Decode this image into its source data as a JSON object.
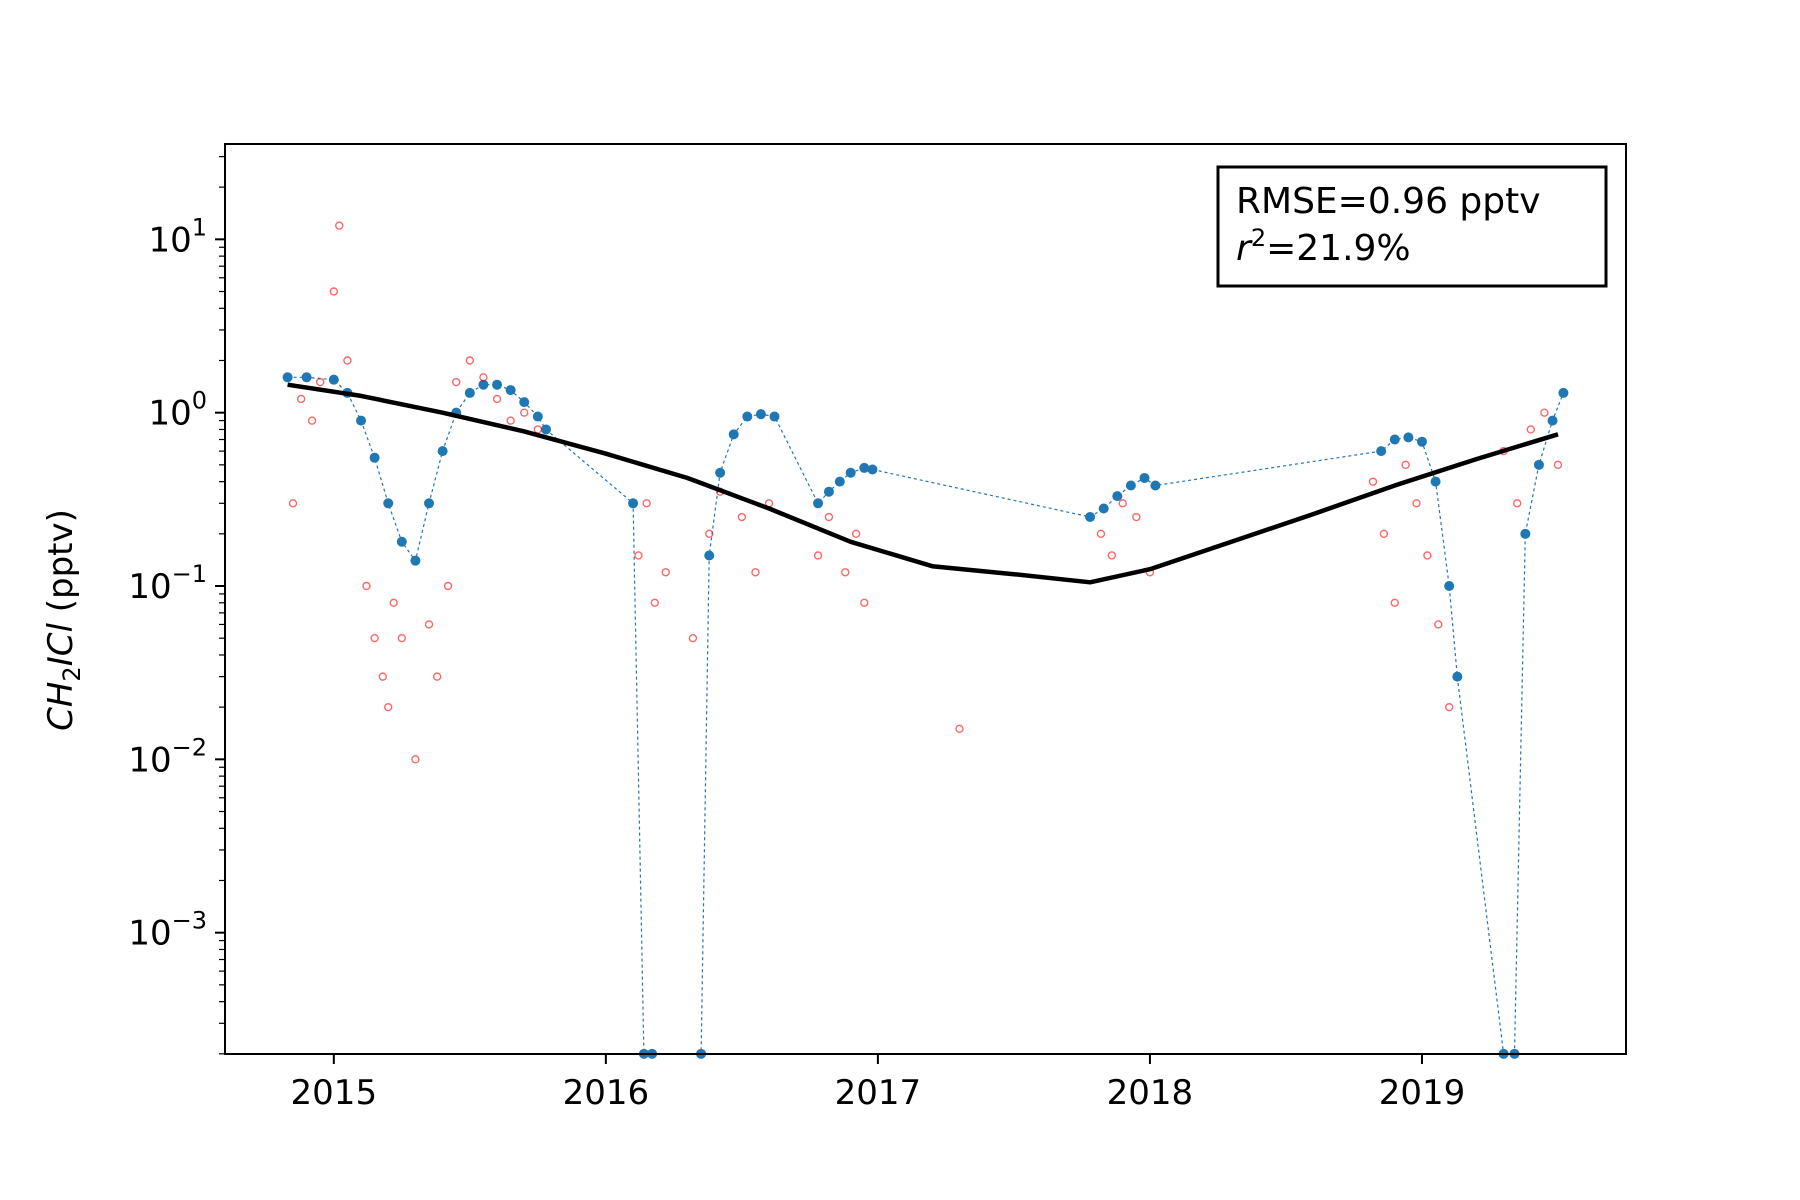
{
  "chart_data": {
    "type": "scatter",
    "title": "",
    "xlabel": "",
    "ylabel": {
      "species_main": "CH",
      "species_sub": "2",
      "species_rest": "ICl",
      "units": " (pptv)"
    },
    "yscale": "log",
    "xlim": [
      2014.6,
      2019.75
    ],
    "ylim_exponent": [
      -3.7,
      1.55
    ],
    "x_ticks": [
      {
        "value": 2015,
        "label": "2015"
      },
      {
        "value": 2016,
        "label": "2016"
      },
      {
        "value": 2017,
        "label": "2017"
      },
      {
        "value": 2018,
        "label": "2018"
      },
      {
        "value": 2019,
        "label": "2019"
      }
    ],
    "y_ticks": [
      {
        "exponent": 1,
        "base": "10",
        "sup": "1"
      },
      {
        "exponent": 0,
        "base": "10",
        "sup": "0"
      },
      {
        "exponent": -1,
        "base": "10",
        "sup": "−1"
      },
      {
        "exponent": -2,
        "base": "10",
        "sup": "−2"
      },
      {
        "exponent": -3,
        "base": "10",
        "sup": "−3"
      }
    ],
    "annotation": {
      "rmse_text": "RMSE=0.96 pptv",
      "r2_var": "r",
      "r2_sup": "2",
      "r2_rest": "=21.9%"
    },
    "colors": {
      "observed": "#ff0000",
      "model": "#1f77b4",
      "trend": "#000000"
    },
    "series": [
      {
        "name": "trend",
        "style": "line",
        "x": [
          2014.83,
          2015.1,
          2015.4,
          2015.7,
          2016.0,
          2016.3,
          2016.6,
          2016.9,
          2017.2,
          2017.5,
          2017.78,
          2018.0,
          2018.3,
          2018.6,
          2018.9,
          2019.2,
          2019.5
        ],
        "y": [
          1.45,
          1.25,
          1.0,
          0.78,
          0.58,
          0.42,
          0.28,
          0.18,
          0.13,
          0.117,
          0.105,
          0.125,
          0.18,
          0.26,
          0.38,
          0.54,
          0.75
        ]
      },
      {
        "name": "model",
        "style": "dots",
        "x": [
          2014.83,
          2014.9,
          2015.0,
          2015.05,
          2015.1,
          2015.15,
          2015.2,
          2015.25,
          2015.3,
          2015.35,
          2015.4,
          2015.45,
          2015.5,
          2015.55,
          2015.6,
          2015.65,
          2015.7,
          2015.75,
          2015.78,
          2016.1,
          2016.14,
          2016.17,
          2016.35,
          2016.38,
          2016.42,
          2016.47,
          2016.52,
          2016.57,
          2016.62,
          2016.78,
          2016.82,
          2016.86,
          2016.9,
          2016.95,
          2016.98,
          2017.78,
          2017.83,
          2017.88,
          2017.93,
          2017.98,
          2018.02,
          2018.85,
          2018.9,
          2018.95,
          2019.0,
          2019.05,
          2019.1,
          2019.13,
          2019.3,
          2019.34,
          2019.38,
          2019.43,
          2019.48,
          2019.52
        ],
        "y": [
          1.6,
          1.6,
          1.55,
          1.3,
          0.9,
          0.55,
          0.3,
          0.18,
          0.14,
          0.3,
          0.6,
          1.0,
          1.3,
          1.45,
          1.45,
          1.35,
          1.15,
          0.95,
          0.8,
          0.3,
          0.0002,
          0.0002,
          0.0002,
          0.15,
          0.45,
          0.75,
          0.95,
          0.98,
          0.95,
          0.3,
          0.35,
          0.4,
          0.45,
          0.48,
          0.47,
          0.25,
          0.28,
          0.33,
          0.38,
          0.42,
          0.38,
          0.6,
          0.7,
          0.72,
          0.68,
          0.4,
          0.1,
          0.03,
          0.0002,
          0.0002,
          0.2,
          0.5,
          0.9,
          1.3
        ]
      },
      {
        "name": "observed",
        "style": "scatter",
        "x": [
          2014.85,
          2014.88,
          2014.92,
          2014.95,
          2015.0,
          2015.02,
          2015.05,
          2015.12,
          2015.15,
          2015.18,
          2015.2,
          2015.22,
          2015.25,
          2015.3,
          2015.35,
          2015.38,
          2015.42,
          2015.45,
          2015.5,
          2015.55,
          2015.6,
          2015.65,
          2015.7,
          2015.75,
          2016.12,
          2016.15,
          2016.18,
          2016.22,
          2016.32,
          2016.38,
          2016.42,
          2016.5,
          2016.55,
          2016.6,
          2016.78,
          2016.82,
          2016.88,
          2016.92,
          2016.95,
          2017.3,
          2017.82,
          2017.86,
          2017.9,
          2017.95,
          2018.0,
          2018.82,
          2018.86,
          2018.9,
          2018.94,
          2018.98,
          2019.02,
          2019.06,
          2019.1,
          2019.3,
          2019.35,
          2019.4,
          2019.45,
          2019.5
        ],
        "y": [
          0.3,
          1.2,
          0.9,
          1.5,
          5.0,
          12.0,
          2.0,
          0.1,
          0.05,
          0.03,
          0.02,
          0.08,
          0.05,
          0.01,
          0.06,
          0.03,
          0.1,
          1.5,
          2.0,
          1.6,
          1.2,
          0.9,
          1.0,
          0.8,
          0.15,
          0.3,
          0.08,
          0.12,
          0.05,
          0.2,
          0.35,
          0.25,
          0.12,
          0.3,
          0.15,
          0.25,
          0.12,
          0.2,
          0.08,
          0.015,
          0.2,
          0.15,
          0.3,
          0.25,
          0.12,
          0.4,
          0.2,
          0.08,
          0.5,
          0.3,
          0.15,
          0.06,
          0.02,
          0.6,
          0.3,
          0.8,
          1.0,
          0.5
        ]
      }
    ]
  }
}
